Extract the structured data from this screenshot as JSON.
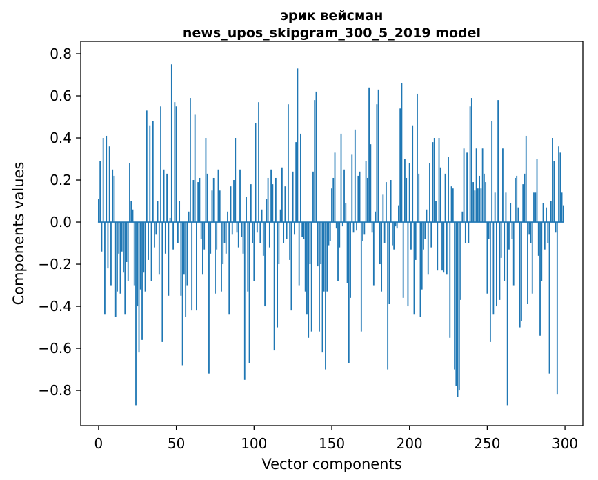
{
  "figure": {
    "title_line1": "эрик вейсман",
    "title_line2": "news_upos_skipgram_300_5_2019 model",
    "xlabel": "Vector components",
    "ylabel": "Components values"
  },
  "chart_data": {
    "type": "bar",
    "title": "эрик вейсман — news_upos_skipgram_300_5_2019 model",
    "xlabel": "Vector components",
    "ylabel": "Components values",
    "bar_color": "#1f77b4",
    "axis_color": "#000000",
    "background_color": "#ffffff",
    "grid": false,
    "legend": null,
    "x_ticks": [
      0,
      50,
      100,
      150,
      200,
      250,
      300
    ],
    "y_ticks": [
      0.8,
      0.6,
      0.4,
      0.2,
      0.0,
      -0.2,
      -0.4,
      -0.6,
      -0.8
    ],
    "xlim": [
      -11.5,
      311.5
    ],
    "ylim": [
      -0.967,
      0.859
    ],
    "x_start": 0,
    "values": [
      0.11,
      0.29,
      -0.14,
      0.4,
      -0.44,
      0.41,
      -0.22,
      0.36,
      -0.3,
      0.25,
      0.22,
      -0.45,
      -0.33,
      -0.15,
      -0.34,
      -0.14,
      -0.24,
      -0.44,
      -0.19,
      -0.28,
      0.28,
      0.1,
      0.06,
      -0.3,
      -0.87,
      -0.4,
      -0.62,
      -0.32,
      -0.56,
      -0.24,
      -0.33,
      0.53,
      -0.18,
      0.46,
      -0.28,
      0.48,
      -0.12,
      -0.06,
      0.1,
      -0.25,
      0.55,
      -0.57,
      0.25,
      -0.15,
      0.23,
      -0.35,
      0.02,
      0.75,
      -0.13,
      0.57,
      0.55,
      -0.1,
      0.1,
      -0.35,
      -0.68,
      -0.25,
      -0.45,
      -0.3,
      0.05,
      0.59,
      -0.42,
      0.2,
      0.51,
      -0.42,
      0.19,
      0.21,
      -0.08,
      -0.25,
      -0.13,
      0.4,
      0.23,
      -0.72,
      -0.15,
      0.15,
      0.21,
      -0.34,
      -0.13,
      0.25,
      0.15,
      -0.33,
      -0.2,
      -0.1,
      -0.15,
      0.05,
      -0.44,
      0.17,
      -0.06,
      0.2,
      0.4,
      -0.05,
      -0.12,
      0.25,
      -0.07,
      -0.15,
      -0.75,
      0.12,
      -0.33,
      -0.67,
      0.18,
      -0.1,
      -0.28,
      0.47,
      -0.05,
      0.57,
      -0.1,
      0.06,
      -0.16,
      -0.4,
      0.11,
      0.21,
      -0.12,
      0.25,
      0.18,
      -0.61,
      0.21,
      -0.5,
      -0.2,
      0.06,
      0.26,
      -0.1,
      0.17,
      -0.08,
      0.56,
      -0.18,
      -0.42,
      0.24,
      -0.06,
      0.38,
      0.73,
      -0.3,
      0.42,
      -0.07,
      -0.08,
      -0.33,
      -0.44,
      -0.55,
      -0.2,
      -0.52,
      0.24,
      0.58,
      0.62,
      -0.21,
      -0.52,
      -0.2,
      -0.62,
      -0.33,
      -0.7,
      -0.33,
      -0.11,
      -0.09,
      0.16,
      0.21,
      0.33,
      -0.03,
      -0.28,
      -0.12,
      0.42,
      -0.02,
      0.25,
      0.09,
      -0.29,
      -0.67,
      -0.36,
      0.32,
      -0.05,
      0.44,
      -0.04,
      0.22,
      0.24,
      -0.52,
      -0.09,
      -0.06,
      0.29,
      0.21,
      0.64,
      0.37,
      -0.05,
      -0.3,
      0.05,
      0.56,
      0.63,
      -0.2,
      -0.33,
      0.13,
      -0.1,
      0.19,
      -0.7,
      -0.39,
      0.2,
      -0.11,
      -0.13,
      -0.02,
      -0.03,
      0.08,
      0.54,
      0.66,
      -0.36,
      0.3,
      0.21,
      -0.4,
      0.28,
      -0.13,
      0.46,
      -0.44,
      -0.18,
      0.61,
      0.23,
      -0.45,
      -0.32,
      -0.13,
      -0.08,
      0.06,
      -0.25,
      0.28,
      -0.12,
      0.38,
      0.4,
      0.1,
      -0.23,
      0.4,
      0.26,
      -0.23,
      -0.24,
      0.23,
      -0.25,
      0.31,
      -0.55,
      0.17,
      0.16,
      -0.7,
      -0.78,
      -0.83,
      -0.8,
      -0.37,
      0.05,
      0.35,
      -0.1,
      0.33,
      -0.1,
      0.55,
      0.59,
      0.19,
      0.15,
      0.35,
      0.16,
      0.22,
      0.16,
      0.35,
      0.23,
      0.19,
      -0.34,
      -0.08,
      -0.57,
      0.48,
      -0.44,
      0.14,
      -0.4,
      0.58,
      -0.37,
      -0.17,
      0.35,
      -0.28,
      0.14,
      -0.87,
      -0.13,
      0.09,
      -0.08,
      -0.3,
      0.21,
      0.22,
      0.07,
      -0.5,
      -0.47,
      0.18,
      0.23,
      0.41,
      -0.39,
      -0.06,
      -0.1,
      -0.34,
      0.14,
      0.14,
      0.3,
      -0.16,
      -0.54,
      -0.28,
      0.09,
      -0.13,
      0.07,
      -0.1,
      -0.72,
      0.1,
      0.4,
      0.29,
      -0.05,
      -0.82,
      0.36,
      0.33,
      0.14,
      0.08
    ]
  }
}
